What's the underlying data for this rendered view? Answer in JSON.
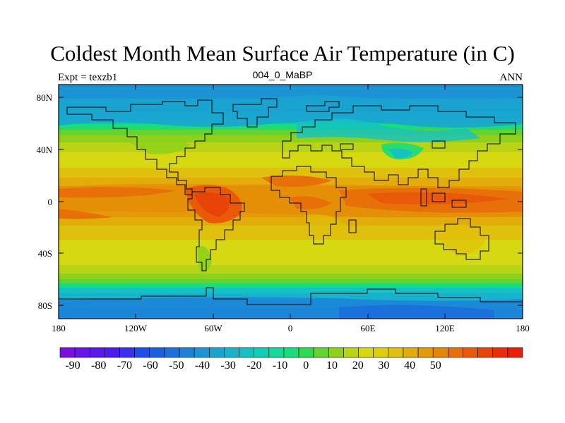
{
  "title": "Coldest Month Mean Surface Air Temperature (in C)",
  "subtitle_left": "Expt = texzb1",
  "subtitle_center": "004_0_MaBP",
  "subtitle_right": "ANN",
  "lat_ticks": [
    "80N",
    "40N",
    "0",
    "40S",
    "80S"
  ],
  "lon_ticks": [
    "180",
    "120W",
    "60W",
    "0",
    "60E",
    "120E",
    "180"
  ],
  "colorbar": {
    "labels": [
      "-90",
      "-80",
      "-70",
      "-60",
      "-50",
      "-40",
      "-30",
      "-20",
      "-10",
      "0",
      "10",
      "20",
      "30",
      "40",
      "50"
    ],
    "colors": [
      "#7a10e0",
      "#6a14e6",
      "#5a18ea",
      "#4a1cee",
      "#3a30ee",
      "#1e4ee8",
      "#1a5fe0",
      "#1c70dc",
      "#1c82d8",
      "#1c93d4",
      "#1aa3d0",
      "#18b2cc",
      "#14c2c4",
      "#12cfb4",
      "#14d89a",
      "#18dd7a",
      "#2cdb52",
      "#62d330",
      "#8fd01c",
      "#b9d414",
      "#d6d912",
      "#dcd00e",
      "#dfc00c",
      "#e2ad0a",
      "#e49a08",
      "#e68608",
      "#e87008",
      "#e85a08",
      "#e84408",
      "#e83008",
      "#e82008"
    ]
  }
}
